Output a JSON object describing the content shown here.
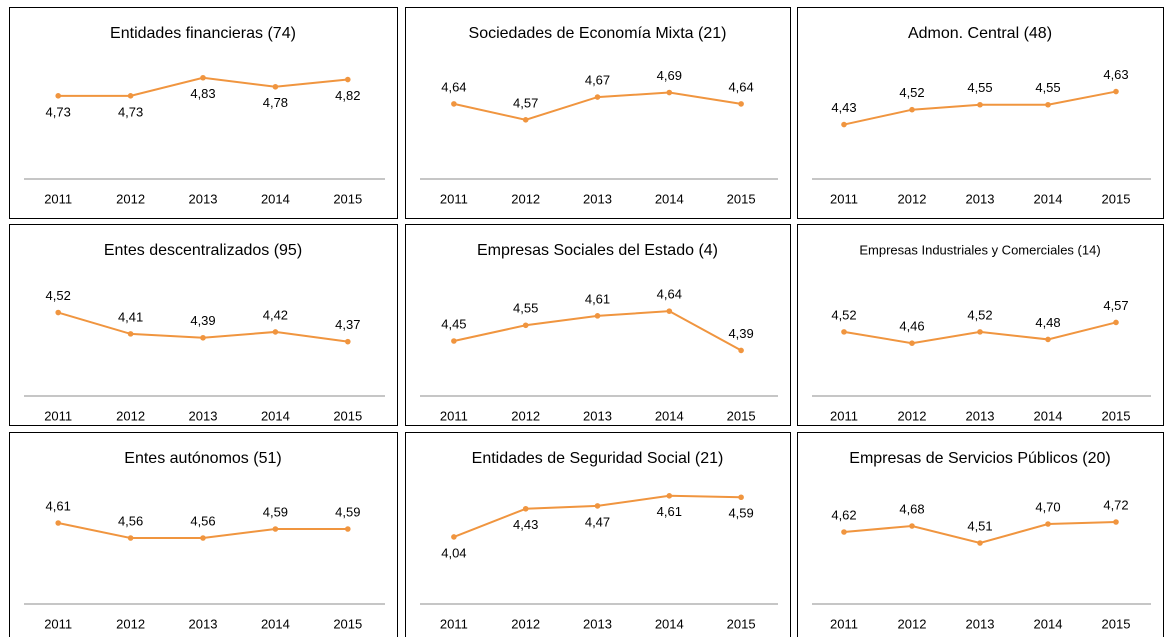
{
  "chart_data": [
    {
      "type": "line",
      "title": "Entidades financieras (74)",
      "categories": [
        "2011",
        "2012",
        "2013",
        "2014",
        "2015"
      ],
      "values": [
        4.73,
        4.73,
        4.83,
        4.78,
        4.82
      ],
      "value_labels": [
        "4,73",
        "4,73",
        "4,83",
        "4,78",
        "4,82"
      ],
      "color": "#f0953f",
      "ylim": [
        4.27,
        5.0
      ],
      "labels": "below"
    },
    {
      "type": "line",
      "title": "Sociedades de Economía Mixta (21)",
      "categories": [
        "2011",
        "2012",
        "2013",
        "2014",
        "2015"
      ],
      "values": [
        4.64,
        4.57,
        4.67,
        4.69,
        4.64
      ],
      "value_labels": [
        "4,64",
        "4,57",
        "4,67",
        "4,69",
        "4,64"
      ],
      "color": "#f0953f",
      "ylim": [
        4.31,
        4.89
      ],
      "labels": "above"
    },
    {
      "type": "line",
      "title": "Admon. Central (48)",
      "categories": [
        "2011",
        "2012",
        "2013",
        "2014",
        "2015"
      ],
      "values": [
        4.43,
        4.52,
        4.55,
        4.55,
        4.63
      ],
      "value_labels": [
        "4,43",
        "4,52",
        "4,55",
        "4,55",
        "4,63"
      ],
      "color": "#f0953f",
      "ylim": [
        4.1,
        4.9
      ],
      "labels": "above"
    },
    {
      "type": "line",
      "title": "Entes descentralizados (95)",
      "categories": [
        "2011",
        "2012",
        "2013",
        "2014",
        "2015"
      ],
      "values": [
        4.52,
        4.41,
        4.39,
        4.42,
        4.37
      ],
      "value_labels": [
        "4,52",
        "4,41",
        "4,39",
        "4,42",
        "4,37"
      ],
      "color": "#f0953f",
      "ylim": [
        4.09,
        4.77
      ],
      "labels": "above"
    },
    {
      "type": "line",
      "title": "Empresas Sociales del Estado (4)",
      "categories": [
        "2011",
        "2012",
        "2013",
        "2014",
        "2015"
      ],
      "values": [
        4.45,
        4.55,
        4.61,
        4.64,
        4.39
      ],
      "value_labels": [
        "4,45",
        "4,55",
        "4,61",
        "4,64",
        "4,39"
      ],
      "color": "#f0953f",
      "ylim": [
        4.1,
        4.94
      ],
      "labels": "above"
    },
    {
      "type": "line",
      "title": "Empresas Industriales y Comerciales (14)",
      "categories": [
        "2011",
        "2012",
        "2013",
        "2014",
        "2015"
      ],
      "values": [
        4.52,
        4.46,
        4.52,
        4.48,
        4.57
      ],
      "value_labels": [
        "4,52",
        "4,46",
        "4,52",
        "4,48",
        "4,57"
      ],
      "color": "#f0953f",
      "ylim": [
        4.18,
        4.88
      ],
      "labels": "above"
    },
    {
      "type": "line",
      "title": "Entes autónomos (51)",
      "categories": [
        "2011",
        "2012",
        "2013",
        "2014",
        "2015"
      ],
      "values": [
        4.61,
        4.56,
        4.56,
        4.59,
        4.59
      ],
      "value_labels": [
        "4,61",
        "4,56",
        "4,56",
        "4,59",
        "4,59"
      ],
      "color": "#f0953f",
      "ylim": [
        4.34,
        4.78
      ],
      "labels": "above"
    },
    {
      "type": "line",
      "title": "Entidades de Seguridad Social (21)",
      "categories": [
        "2011",
        "2012",
        "2013",
        "2014",
        "2015"
      ],
      "values": [
        4.04,
        4.43,
        4.47,
        4.61,
        4.59
      ],
      "value_labels": [
        "4,04",
        "4,43",
        "4,47",
        "4,61",
        "4,59"
      ],
      "color": "#f0953f",
      "ylim": [
        3.11,
        4.94
      ],
      "labels": "below"
    },
    {
      "type": "line",
      "title": "Empresas de Servicios Públicos (20)",
      "categories": [
        "2011",
        "2012",
        "2013",
        "2014",
        "2015"
      ],
      "values": [
        4.62,
        4.68,
        4.51,
        4.7,
        4.72
      ],
      "value_labels": [
        "4,62",
        "4,68",
        "4,51",
        "4,70",
        "4,72"
      ],
      "color": "#f0953f",
      "ylim": [
        3.9,
        5.22
      ],
      "labels": "above"
    }
  ]
}
